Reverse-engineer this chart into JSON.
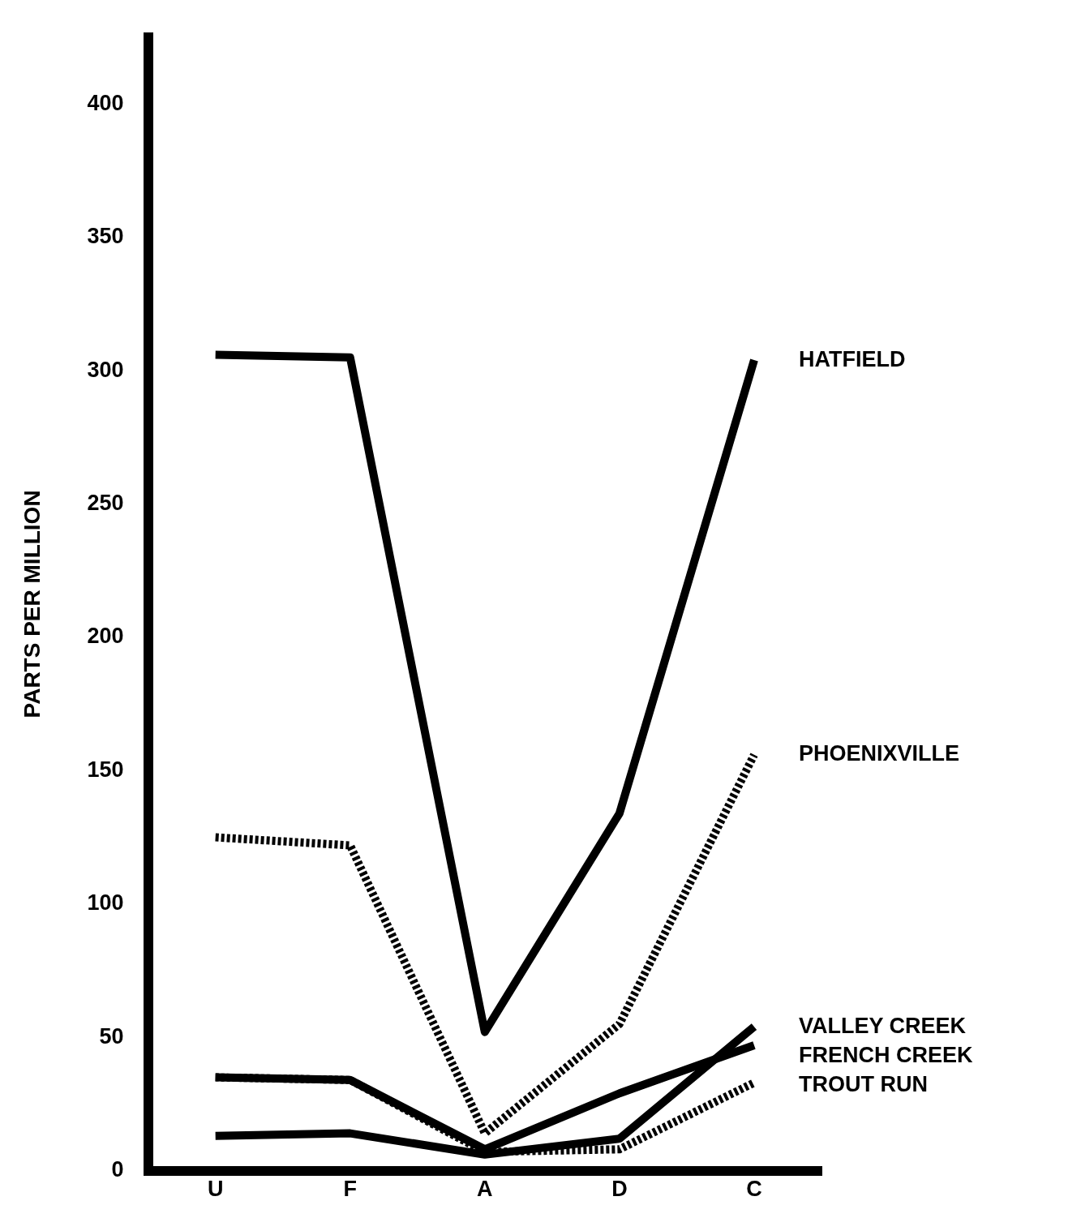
{
  "chart_data": {
    "type": "line",
    "ylabel": "PARTS PER MILLION",
    "categories": [
      "U",
      "F",
      "A",
      "D",
      "C"
    ],
    "ylim": [
      0,
      425
    ],
    "yticks": [
      0,
      50,
      100,
      150,
      200,
      250,
      300,
      350,
      400
    ],
    "grid": false,
    "legend": false,
    "marker": "none",
    "series": [
      {
        "name": "HATFIELD",
        "color": "#000000",
        "line_style": "solid",
        "values": [
          306,
          305,
          52,
          134,
          304
        ]
      },
      {
        "name": "PHOENIXVILLE",
        "color": "#000000",
        "line_style": "dotted",
        "values": [
          125,
          122,
          14,
          55,
          156
        ]
      },
      {
        "name": "VALLEY CREEK",
        "color": "#000000",
        "line_style": "solid",
        "values": [
          13,
          14,
          6,
          12,
          54
        ]
      },
      {
        "name": "FRENCH CREEK",
        "color": "#000000",
        "line_style": "solid",
        "values": [
          35,
          34,
          8,
          29,
          47
        ]
      },
      {
        "name": "TROUT RUN",
        "color": "#000000",
        "line_style": "dotted",
        "values": [
          35,
          34,
          7,
          8,
          33
        ]
      }
    ]
  }
}
